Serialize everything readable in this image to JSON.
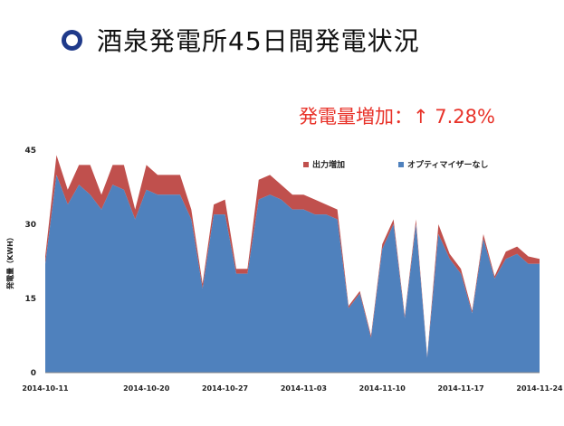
{
  "header": {
    "title": "酒泉発電所45日間発電状況",
    "increase_label": "発電量増加：↑ 7.28%"
  },
  "colors": {
    "title_bullet": "#1f3a8a",
    "increase": "#e8332a",
    "base_series": "#4f81bd",
    "extra_series": "#c0504d"
  },
  "chart_data": {
    "type": "area",
    "stacked": true,
    "ylabel": "発電量（KWH）",
    "xlabel": "",
    "ylim": [
      0,
      45
    ],
    "yticks": [
      "0",
      "15",
      "30",
      "45"
    ],
    "xticks": [
      "2014-10-11",
      "2014-10-20",
      "2014-10-27",
      "2014-11-03",
      "2014-11-10",
      "2014-11-17",
      "2014-11-24"
    ],
    "x": [
      "2014-10-11",
      "2014-10-12",
      "2014-10-13",
      "2014-10-14",
      "2014-10-15",
      "2014-10-16",
      "2014-10-17",
      "2014-10-18",
      "2014-10-19",
      "2014-10-20",
      "2014-10-21",
      "2014-10-22",
      "2014-10-23",
      "2014-10-24",
      "2014-10-25",
      "2014-10-26",
      "2014-10-27",
      "2014-10-28",
      "2014-10-29",
      "2014-10-30",
      "2014-10-31",
      "2014-11-01",
      "2014-11-02",
      "2014-11-03",
      "2014-11-04",
      "2014-11-05",
      "2014-11-06",
      "2014-11-07",
      "2014-11-08",
      "2014-11-09",
      "2014-11-10",
      "2014-11-11",
      "2014-11-12",
      "2014-11-13",
      "2014-11-14",
      "2014-11-15",
      "2014-11-16",
      "2014-11-17",
      "2014-11-18",
      "2014-11-19",
      "2014-11-20",
      "2014-11-21",
      "2014-11-22",
      "2014-11-23",
      "2014-11-24"
    ],
    "series": [
      {
        "name": "オプティマイザーなし",
        "values": [
          22,
          40,
          34,
          38,
          36,
          33,
          38,
          37,
          31,
          37,
          36,
          36,
          36,
          31,
          17,
          32,
          32,
          20,
          20,
          35,
          36,
          35,
          33,
          33,
          32,
          32,
          31,
          13,
          16,
          7,
          25,
          30,
          11,
          30,
          3,
          28,
          23,
          20,
          12,
          27,
          19,
          23,
          24,
          22,
          22
        ]
      },
      {
        "name": "出力増加",
        "values": [
          1.5,
          4,
          3,
          4,
          6,
          3,
          4,
          5,
          2,
          5,
          4,
          4,
          4,
          2,
          1,
          2,
          3,
          1,
          1,
          4,
          4,
          3,
          3,
          3,
          3,
          2,
          2,
          0.5,
          0.5,
          0.5,
          1,
          1,
          0.5,
          1,
          0.3,
          2,
          1,
          1,
          0.5,
          1,
          0.5,
          1.5,
          1.5,
          1.5,
          1
        ]
      }
    ],
    "legend_position": "top-right",
    "grid": false
  }
}
